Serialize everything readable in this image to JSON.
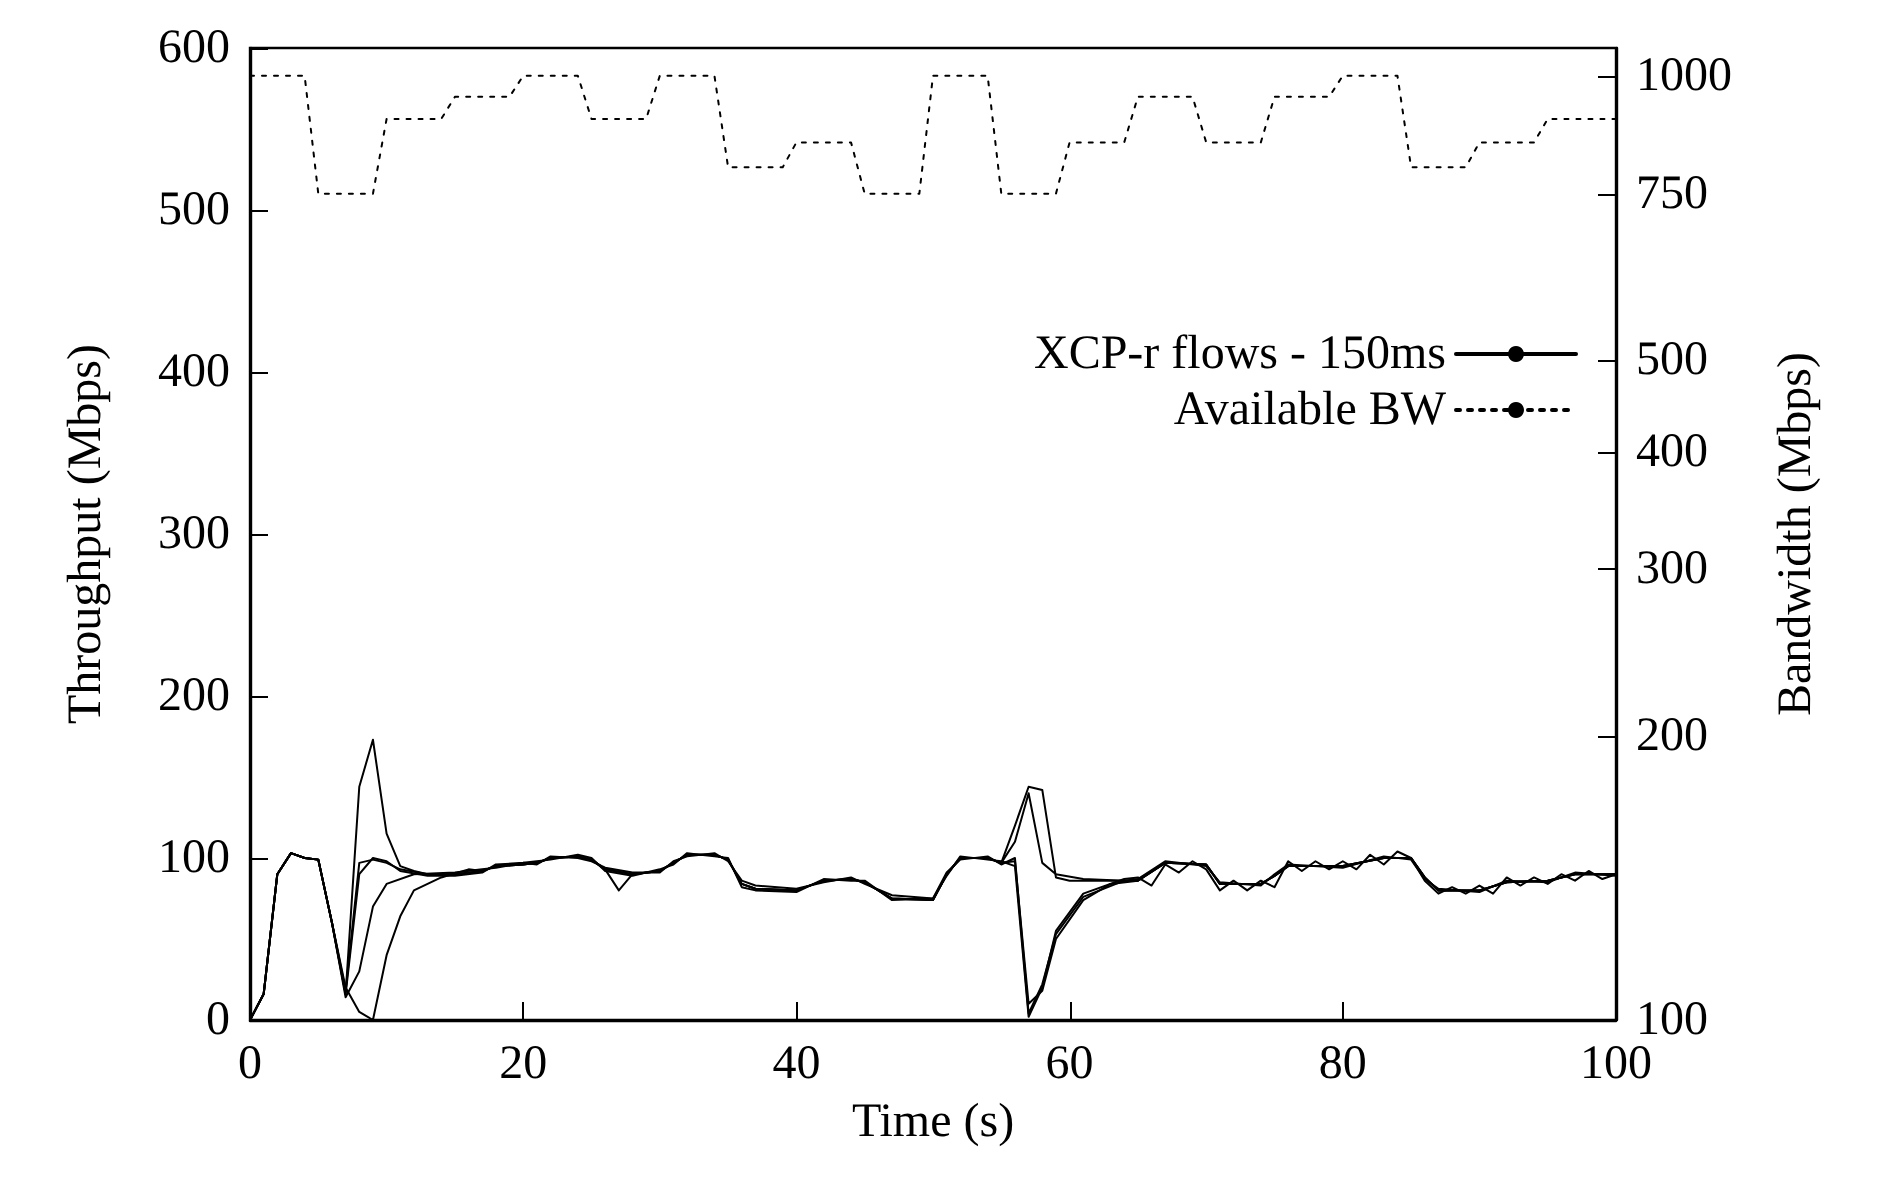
{
  "chart_data": {
    "type": "line",
    "xlabel": "Time (s)",
    "ylabel": "Throughput (Mbps)",
    "y2label": "Bandwidth (Mbps)",
    "xlim": [
      0,
      100
    ],
    "xticks": [
      0,
      20,
      40,
      60,
      80,
      100
    ],
    "ylim": [
      0,
      600
    ],
    "yticks": [
      0,
      100,
      200,
      300,
      400,
      500,
      600
    ],
    "y2lim": [
      100,
      1070
    ],
    "y2ticks": [
      100,
      200,
      300,
      400,
      500,
      750,
      1000
    ],
    "log": "y2",
    "grid": false,
    "legend": "top right",
    "marker": "none",
    "line_style": "solid",
    "series": [
      {
        "name": "XCP-r flows - 150ms",
        "color": "#000000",
        "x": [
          0,
          1,
          2,
          3,
          4,
          5,
          6,
          7,
          8,
          9,
          10,
          11,
          12,
          13,
          15,
          17,
          18,
          20,
          21,
          22,
          24,
          25,
          26,
          28,
          30,
          31,
          32,
          34,
          35,
          36,
          37,
          40,
          42,
          44,
          45,
          47,
          50,
          51,
          52,
          54,
          55,
          56,
          57,
          58,
          59,
          60,
          62,
          64,
          65,
          67,
          70,
          71,
          74,
          75,
          76,
          80,
          83,
          85,
          86,
          87,
          90,
          92,
          95,
          97,
          100
        ],
        "values": [
          0,
          16,
          90,
          103,
          100,
          99,
          60,
          16,
          144,
          173,
          115,
          95,
          92,
          90,
          90,
          92,
          95,
          96,
          97,
          100,
          101,
          99,
          93,
          90,
          92,
          97,
          102,
          102,
          99,
          84,
          81,
          80,
          86,
          87,
          85,
          75,
          74,
          90,
          100,
          100,
          97,
          120,
          144,
          142,
          88,
          86,
          86,
          86,
          86,
          97,
          96,
          84,
          84,
          89,
          95,
          95,
          100,
          100,
          88,
          80,
          80,
          85,
          86,
          90,
          90
        ]
      },
      {
        "color": "#000000",
        "x": [
          0,
          1,
          2,
          3,
          4,
          5,
          6,
          7,
          8,
          9,
          10,
          11,
          13,
          15,
          17,
          18,
          20,
          21,
          22,
          24,
          25,
          26,
          27,
          28,
          30,
          31,
          32,
          34,
          35,
          36,
          37,
          40,
          42,
          44,
          45,
          47,
          50,
          51,
          52,
          54,
          55,
          56,
          57,
          58,
          59,
          61,
          64,
          65,
          67,
          70,
          71,
          74,
          75,
          76,
          80,
          83,
          85,
          86,
          87,
          90,
          92,
          95,
          97,
          100
        ],
        "values": [
          0,
          16,
          90,
          103,
          100,
          99,
          60,
          18,
          97,
          99,
          97,
          93,
          90,
          90,
          92,
          95,
          96,
          97,
          100,
          101,
          99,
          93,
          80,
          90,
          92,
          97,
          102,
          102,
          99,
          84,
          81,
          80,
          86,
          87,
          85,
          75,
          74,
          90,
          100,
          100,
          97,
          110,
          140,
          97,
          90,
          87,
          86,
          87,
          98,
          95,
          85,
          83,
          90,
          96,
          94,
          101,
          99,
          87,
          81,
          79,
          86,
          85,
          91,
          89
        ]
      },
      {
        "color": "#000000",
        "x": [
          0,
          1,
          2,
          3,
          4,
          5,
          6,
          7,
          8,
          9,
          10,
          12,
          15,
          17,
          18,
          20,
          21,
          22,
          24,
          25,
          26,
          28,
          30,
          31,
          32,
          34,
          35,
          36,
          37,
          40,
          42,
          44,
          45,
          47,
          50,
          51,
          52,
          54,
          55,
          56,
          57,
          58,
          59,
          61,
          64,
          65,
          67,
          70,
          71,
          74,
          75,
          76,
          80,
          83,
          85,
          86,
          87,
          90,
          92,
          95,
          97,
          100
        ],
        "values": [
          0,
          16,
          90,
          103,
          100,
          99,
          60,
          14,
          30,
          70,
          84,
          90,
          91,
          93,
          94,
          97,
          96,
          101,
          100,
          98,
          94,
          91,
          91,
          98,
          101,
          103,
          98,
          86,
          83,
          81,
          85,
          88,
          84,
          77,
          75,
          91,
          99,
          101,
          96,
          100,
          4,
          22,
          53,
          76,
          86,
          86,
          97,
          96,
          84,
          84,
          89,
          95,
          95,
          100,
          100,
          88,
          80,
          80,
          85,
          86,
          90,
          90
        ]
      },
      {
        "color": "#000000",
        "x": [
          0,
          1,
          2,
          3,
          4,
          5,
          6,
          7,
          8,
          9,
          10,
          11,
          12,
          14,
          16,
          17,
          18,
          20,
          21,
          22,
          24,
          25,
          26,
          28,
          30,
          31,
          32,
          34,
          35,
          36,
          37,
          40,
          42,
          44,
          45,
          47,
          50,
          51,
          52,
          54,
          55,
          56,
          57,
          58,
          59,
          61,
          63,
          65,
          67,
          70,
          71,
          74,
          75,
          76,
          80,
          83,
          85,
          86,
          87,
          90,
          92,
          95,
          97,
          100
        ],
        "values": [
          0,
          16,
          90,
          103,
          100,
          99,
          60,
          20,
          5,
          0,
          40,
          64,
          80,
          88,
          93,
          92,
          95,
          96,
          97,
          100,
          101,
          99,
          93,
          90,
          92,
          97,
          102,
          102,
          99,
          84,
          81,
          80,
          86,
          87,
          85,
          75,
          74,
          90,
          100,
          100,
          97,
          98,
          10,
          18,
          50,
          74,
          84,
          86,
          97,
          96,
          84,
          84,
          89,
          95,
          95,
          100,
          100,
          88,
          80,
          80,
          85,
          86,
          90,
          90
        ]
      },
      {
        "color": "#000000",
        "x": [
          0,
          1,
          2,
          3,
          4,
          5,
          6,
          7,
          8,
          9,
          10,
          11,
          13,
          15,
          17,
          18,
          20,
          21,
          22,
          24,
          25,
          26,
          28,
          30,
          31,
          32,
          34,
          35,
          36,
          37,
          40,
          42,
          44,
          45,
          47,
          50,
          51,
          52,
          54,
          55,
          56,
          57,
          58,
          59,
          61,
          64,
          65,
          66,
          67,
          68,
          69,
          70,
          71,
          72,
          73,
          74,
          75,
          76,
          77,
          78,
          79,
          80,
          81,
          82,
          83,
          84,
          85,
          86,
          87,
          88,
          89,
          90,
          91,
          92,
          93,
          94,
          95,
          96,
          97,
          98,
          99,
          100
        ],
        "values": [
          0,
          16,
          90,
          103,
          100,
          99,
          60,
          16,
          90,
          100,
          98,
          92,
          89,
          89,
          91,
          96,
          97,
          98,
          99,
          102,
          100,
          92,
          89,
          93,
          96,
          103,
          101,
          100,
          82,
          80,
          79,
          87,
          86,
          86,
          74,
          75,
          89,
          101,
          99,
          98,
          95,
          2,
          20,
          55,
          78,
          87,
          88,
          83,
          96,
          91,
          98,
          93,
          80,
          86,
          80,
          86,
          82,
          98,
          92,
          98,
          93,
          98,
          93,
          102,
          96,
          104,
          100,
          86,
          78,
          82,
          78,
          83,
          78,
          88,
          83,
          88,
          84,
          90,
          86,
          92,
          87,
          90
        ]
      },
      {
        "name": "Available BW",
        "color": "#000000",
        "axis": "y2",
        "line_style": "dotted",
        "x": [
          0,
          4,
          5,
          9,
          10,
          14,
          15,
          19,
          20,
          24,
          25,
          29,
          30,
          34,
          35,
          39,
          40,
          44,
          45,
          49,
          50,
          54,
          55,
          59,
          60,
          64,
          65,
          69,
          70,
          74,
          75,
          79,
          80,
          84,
          85,
          89,
          90,
          94,
          95,
          100
        ],
        "values": [
          1000,
          1000,
          750,
          750,
          900,
          900,
          950,
          950,
          1000,
          1000,
          900,
          900,
          1000,
          1000,
          800,
          800,
          850,
          850,
          750,
          750,
          1000,
          1000,
          750,
          750,
          850,
          850,
          950,
          950,
          850,
          850,
          950,
          950,
          1000,
          1000,
          800,
          800,
          850,
          850,
          900,
          900
        ]
      }
    ]
  }
}
